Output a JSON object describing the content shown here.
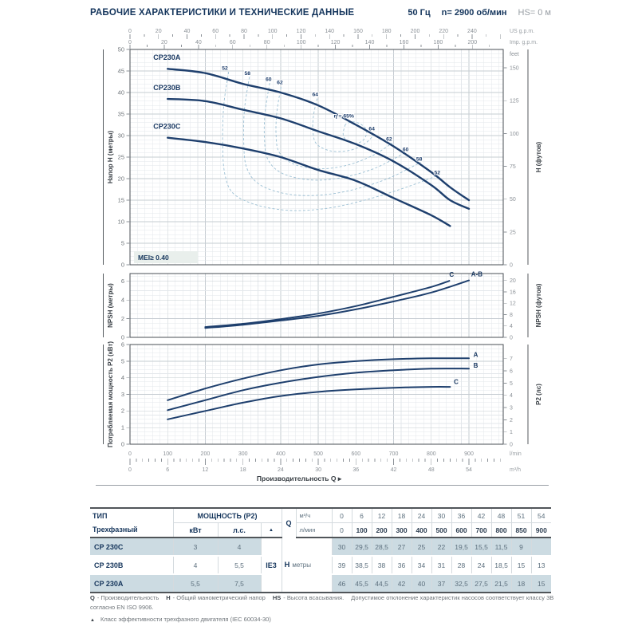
{
  "header": {
    "title": "РАБОЧИЕ ХАРАКТЕРИСТИКИ И ТЕХНИЧЕСКИЕ ДАННЫЕ",
    "frequency": "50 Гц",
    "speed": "n= 2900 об/мин",
    "suction": "HS= 0 м"
  },
  "colors": {
    "curve": "#1e3f6d",
    "navy": "#16365c",
    "efficiency_line": "#9cc0d4",
    "row_highlight": "#ccdbe2",
    "grid_minor": "#e3e7eb",
    "grid_major": "#c6ccd2",
    "tick_text": "#8b9197",
    "mei_bg": "#e9efec"
  },
  "x_axis": {
    "lmin": {
      "label": "l/min",
      "min": 0,
      "max": 900,
      "step": 100
    },
    "m3h": {
      "label": "m³/h",
      "min": 0,
      "max": 54,
      "step": 6,
      "lmin_per_unit": 16.6667
    },
    "title": "Производительность Q",
    "arrow": "▸"
  },
  "chart_data": [
    {
      "type": "line",
      "name": "head-curves",
      "ylabel": "Напор H (метры)",
      "ylabel_right": "H (футов)",
      "right_unit_label": "feet",
      "ylim": [
        0,
        50
      ],
      "yticks": [
        0,
        5,
        10,
        15,
        20,
        25,
        30,
        35,
        40,
        45,
        50
      ],
      "yticks_right_feet": [
        0,
        25,
        50,
        75,
        100,
        125,
        150
      ],
      "top_axis": [
        {
          "label": "US g.p.m.",
          "max": 240,
          "step": 20,
          "lmin_per_unit": 3.785
        },
        {
          "label": "Imp. g.p.m.",
          "max": 200,
          "step": 20,
          "lmin_per_unit": 4.546
        }
      ],
      "mei_label": "MEI≥ 0.40",
      "series": [
        {
          "name": "CP230A",
          "label_at": [
            62,
            47.6
          ],
          "points": [
            [
              100,
              45.5
            ],
            [
              200,
              44.5
            ],
            [
              300,
              42
            ],
            [
              400,
              40
            ],
            [
              500,
              37
            ],
            [
              600,
              32.5
            ],
            [
              700,
              27.5
            ],
            [
              800,
              21.5
            ],
            [
              850,
              18
            ],
            [
              900,
              15
            ]
          ]
        },
        {
          "name": "CP230B",
          "label_at": [
            62,
            40.6
          ],
          "points": [
            [
              100,
              38.5
            ],
            [
              200,
              38
            ],
            [
              300,
              36
            ],
            [
              400,
              34
            ],
            [
              500,
              31
            ],
            [
              600,
              28
            ],
            [
              700,
              24
            ],
            [
              800,
              18.5
            ],
            [
              850,
              15
            ],
            [
              900,
              13
            ]
          ]
        },
        {
          "name": "CP230C",
          "label_at": [
            62,
            31.6
          ],
          "points": [
            [
              100,
              29.5
            ],
            [
              200,
              28.5
            ],
            [
              300,
              27
            ],
            [
              400,
              25
            ],
            [
              500,
              22
            ],
            [
              600,
              19.5
            ],
            [
              700,
              15.5
            ],
            [
              800,
              11.5
            ],
            [
              850,
              9
            ]
          ]
        }
      ],
      "efficiency_contours": [
        {
          "value": 52,
          "points": [
            [
              262,
              44.8
            ],
            [
              249,
              37
            ],
            [
              246,
              28
            ],
            [
              252,
              21
            ],
            [
              275,
              16.5
            ],
            [
              340,
              13.8
            ],
            [
              430,
              12.6
            ],
            [
              530,
              13.2
            ],
            [
              640,
              15.4
            ],
            [
              740,
              18.2
            ],
            [
              822,
              20.9
            ]
          ]
        },
        {
          "value": 58,
          "points": [
            [
              317,
              43.6
            ],
            [
              304,
              36
            ],
            [
              302,
              28.5
            ],
            [
              310,
              22.5
            ],
            [
              345,
              18.6
            ],
            [
              420,
              16.4
            ],
            [
              510,
              16.2
            ],
            [
              600,
              17.6
            ],
            [
              690,
              20.2
            ],
            [
              772,
              23.8
            ]
          ]
        },
        {
          "value": 60,
          "points": [
            [
              371,
              42.2
            ],
            [
              359,
              35.5
            ],
            [
              357,
              29.5
            ],
            [
              366,
              24.5
            ],
            [
              405,
              21.2
            ],
            [
              480,
              19.7
            ],
            [
              560,
              20.2
            ],
            [
              650,
              22.4
            ],
            [
              734,
              26.2
            ]
          ]
        },
        {
          "value": 62,
          "points": [
            [
              401,
              41.3
            ],
            [
              390,
              35.5
            ],
            [
              388,
              30
            ],
            [
              397,
              26
            ],
            [
              440,
              23.2
            ],
            [
              510,
              22.3
            ],
            [
              580,
              23.2
            ],
            [
              645,
              25.4
            ],
            [
              697,
              28.3
            ]
          ]
        },
        {
          "value": 64,
          "points": [
            [
              497,
              38.6
            ],
            [
              487,
              34.5
            ],
            [
              486,
              30.8
            ],
            [
              496,
              28
            ],
            [
              535,
              26.4
            ],
            [
              585,
              26.6
            ],
            [
              625,
              28.2
            ],
            [
              652,
              30.6
            ]
          ]
        },
        {
          "value": 65,
          "points": [
            [
              572,
              32.6
            ],
            [
              566,
              30.3
            ],
            [
              578,
              28.6
            ],
            [
              602,
              28.2
            ],
            [
              622,
              29.2
            ],
            [
              628,
              31.2
            ],
            [
              612,
              32.7
            ],
            [
              590,
              33.2
            ],
            [
              572,
              32.6
            ]
          ]
        }
      ],
      "efficiency_labels": [
        {
          "text": "52",
          "q": 252,
          "h": 45.3
        },
        {
          "text": "58",
          "q": 312,
          "h": 44.1
        },
        {
          "text": "60",
          "q": 368,
          "h": 42.7
        },
        {
          "text": "62",
          "q": 398,
          "h": 41.9
        },
        {
          "text": "64",
          "q": 492,
          "h": 39.2
        },
        {
          "text": "η = 65%",
          "q": 568,
          "h": 34.2
        },
        {
          "text": "64",
          "q": 642,
          "h": 31.2
        },
        {
          "text": "62",
          "q": 688,
          "h": 28.8
        },
        {
          "text": "60",
          "q": 732,
          "h": 26.4
        },
        {
          "text": "58",
          "q": 768,
          "h": 24.2
        },
        {
          "text": "52",
          "q": 816,
          "h": 21.0
        }
      ]
    },
    {
      "type": "line",
      "name": "npsh-curves",
      "ylabel": "NPSH (метры)",
      "ylabel_right": "NPSH (футов)",
      "ylim": [
        0,
        7
      ],
      "yticks": [
        0,
        2,
        4,
        6
      ],
      "yticks_right_feet": [
        0,
        4,
        8,
        12,
        16,
        20
      ],
      "series": [
        {
          "name": "C",
          "label_at": [
            848,
            6.5
          ],
          "points": [
            [
              200,
              1.1
            ],
            [
              300,
              1.45
            ],
            [
              400,
              1.95
            ],
            [
              500,
              2.55
            ],
            [
              600,
              3.35
            ],
            [
              700,
              4.35
            ],
            [
              800,
              5.4
            ],
            [
              848,
              6.05
            ]
          ]
        },
        {
          "name": "A-B",
          "label_at": [
            906,
            6.55
          ],
          "points": [
            [
              200,
              1.0
            ],
            [
              300,
              1.35
            ],
            [
              400,
              1.8
            ],
            [
              500,
              2.3
            ],
            [
              600,
              3.0
            ],
            [
              700,
              3.85
            ],
            [
              800,
              4.8
            ],
            [
              900,
              6.1
            ]
          ]
        }
      ]
    },
    {
      "type": "line",
      "name": "p2-curves",
      "ylabel": "Потребляемая мощность P2 (кВт)",
      "ylabel_right": "P2 (лс)",
      "ylim": [
        0,
        6
      ],
      "yticks": [
        0,
        1,
        2,
        3,
        4,
        5,
        6
      ],
      "yticks_right_hp": [
        0,
        1,
        2,
        3,
        4,
        5,
        6,
        7
      ],
      "series": [
        {
          "name": "A",
          "label_at": [
            912,
            5.25
          ],
          "points": [
            [
              100,
              2.65
            ],
            [
              200,
              3.35
            ],
            [
              300,
              3.95
            ],
            [
              400,
              4.45
            ],
            [
              500,
              4.8
            ],
            [
              600,
              5.0
            ],
            [
              700,
              5.12
            ],
            [
              800,
              5.17
            ],
            [
              900,
              5.17
            ]
          ]
        },
        {
          "name": "B",
          "label_at": [
            912,
            4.62
          ],
          "points": [
            [
              100,
              2.05
            ],
            [
              200,
              2.65
            ],
            [
              300,
              3.25
            ],
            [
              400,
              3.7
            ],
            [
              500,
              4.05
            ],
            [
              600,
              4.3
            ],
            [
              700,
              4.45
            ],
            [
              800,
              4.55
            ],
            [
              900,
              4.55
            ]
          ]
        },
        {
          "name": "C",
          "label_at": [
            860,
            3.62
          ],
          "points": [
            [
              100,
              1.5
            ],
            [
              200,
              2.0
            ],
            [
              300,
              2.5
            ],
            [
              400,
              2.9
            ],
            [
              500,
              3.15
            ],
            [
              600,
              3.3
            ],
            [
              700,
              3.4
            ],
            [
              800,
              3.45
            ],
            [
              850,
              3.45
            ]
          ]
        }
      ]
    }
  ],
  "table": {
    "col1_header": "ТИП",
    "col1_sub": "Трехфазный",
    "power_header": "МОЩНОСТЬ (P2)",
    "kw_label": "кВт",
    "hp_label": "л.с.",
    "triangle": "▲",
    "q_label": "Q",
    "m3h_label": "м³/ч",
    "lmin_label": "л/мин",
    "h_label": "H",
    "meters_label": "метры",
    "ie_class": "IE3",
    "q_m3h": [
      "0",
      "6",
      "12",
      "18",
      "24",
      "30",
      "36",
      "42",
      "48",
      "51",
      "54"
    ],
    "q_lmin": [
      "0",
      "100",
      "200",
      "300",
      "400",
      "500",
      "600",
      "700",
      "800",
      "850",
      "900"
    ],
    "rows": [
      {
        "model": "CP 230C",
        "kw": "3",
        "hp": "4",
        "highlight": true,
        "h": [
          "30",
          "29,5",
          "28,5",
          "27",
          "25",
          "22",
          "19,5",
          "15,5",
          "11,5",
          "9",
          ""
        ]
      },
      {
        "model": "CP 230B",
        "kw": "4",
        "hp": "5,5",
        "highlight": false,
        "h": [
          "39",
          "38,5",
          "38",
          "36",
          "34",
          "31",
          "28",
          "24",
          "18,5",
          "15",
          "13"
        ]
      },
      {
        "model": "CP 230A",
        "kw": "5,5",
        "hp": "7,5",
        "highlight": true,
        "h": [
          "46",
          "45,5",
          "44,5",
          "42",
          "40",
          "37",
          "32,5",
          "27,5",
          "21,5",
          "18",
          "15"
        ]
      }
    ]
  },
  "footnotes": {
    "q": "Q",
    "q_def": "- Производительность",
    "h": "H",
    "h_def": "- Общий манометрический напор",
    "hs": "HS",
    "hs_def": "- Высота всасывания.",
    "tolerance": "Допустимое отклонение характеристик насосов соответствует классу 3B согласно EN ISO 9906.",
    "triangle": "▲",
    "efficiency_note": "Класс эффективности трехфазного двигателя (IEC 60034-30)"
  }
}
